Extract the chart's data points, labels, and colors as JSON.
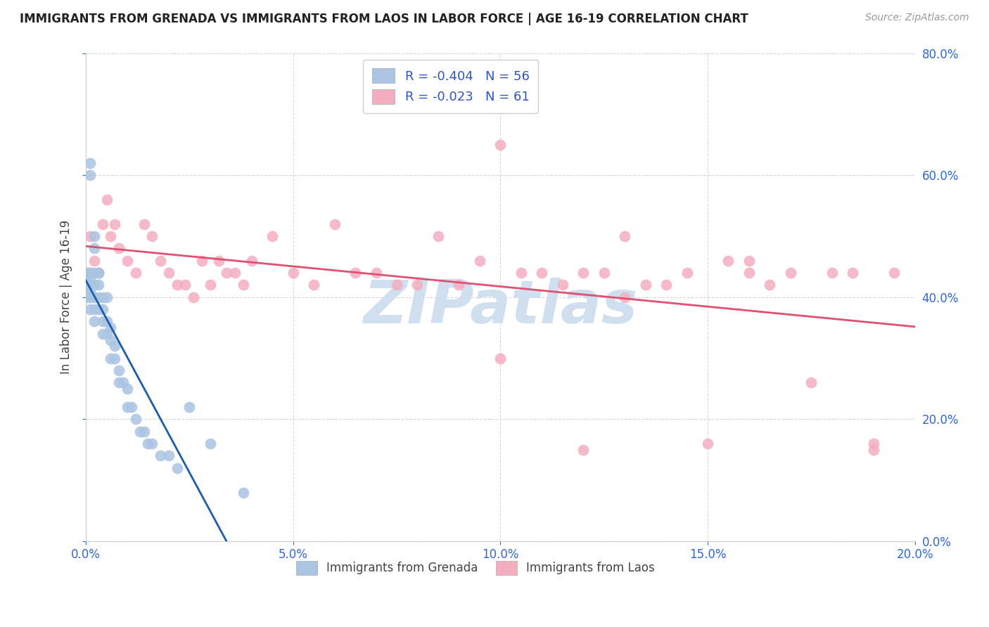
{
  "title": "IMMIGRANTS FROM GRENADA VS IMMIGRANTS FROM LAOS IN LABOR FORCE | AGE 16-19 CORRELATION CHART",
  "source": "Source: ZipAtlas.com",
  "ylabel": "In Labor Force | Age 16-19",
  "R_grenada": -0.404,
  "N_grenada": 56,
  "R_laos": -0.023,
  "N_laos": 61,
  "color_grenada": "#aac4e2",
  "color_laos": "#f4aec0",
  "line_color_grenada": "#1a5ca8",
  "line_color_laos": "#e05070",
  "watermark_color": "#d0dff0",
  "xlim": [
    0.0,
    0.2
  ],
  "ylim": [
    0.0,
    0.8
  ],
  "xtick_values": [
    0.0,
    0.05,
    0.1,
    0.15,
    0.2
  ],
  "ytick_values": [
    0.0,
    0.2,
    0.4,
    0.6,
    0.8
  ],
  "grenada_legend": "Immigrants from Grenada",
  "laos_legend": "Immigrants from Laos",
  "grenada_x": [
    0.0,
    0.0,
    0.0,
    0.0,
    0.0,
    0.0,
    0.001,
    0.001,
    0.001,
    0.001,
    0.001,
    0.001,
    0.001,
    0.001,
    0.001,
    0.002,
    0.002,
    0.002,
    0.002,
    0.002,
    0.002,
    0.002,
    0.003,
    0.003,
    0.003,
    0.003,
    0.003,
    0.004,
    0.004,
    0.004,
    0.004,
    0.005,
    0.005,
    0.005,
    0.006,
    0.006,
    0.006,
    0.007,
    0.007,
    0.008,
    0.008,
    0.009,
    0.01,
    0.01,
    0.011,
    0.012,
    0.013,
    0.014,
    0.015,
    0.016,
    0.018,
    0.02,
    0.022,
    0.025,
    0.03,
    0.038
  ],
  "grenada_y": [
    0.44,
    0.44,
    0.43,
    0.42,
    0.41,
    0.4,
    0.62,
    0.6,
    0.44,
    0.44,
    0.43,
    0.42,
    0.41,
    0.4,
    0.38,
    0.5,
    0.48,
    0.44,
    0.42,
    0.4,
    0.38,
    0.36,
    0.44,
    0.44,
    0.42,
    0.4,
    0.38,
    0.4,
    0.38,
    0.36,
    0.34,
    0.4,
    0.36,
    0.34,
    0.35,
    0.33,
    0.3,
    0.32,
    0.3,
    0.28,
    0.26,
    0.26,
    0.25,
    0.22,
    0.22,
    0.2,
    0.18,
    0.18,
    0.16,
    0.16,
    0.14,
    0.14,
    0.12,
    0.22,
    0.16,
    0.08
  ],
  "laos_x": [
    0.0,
    0.001,
    0.002,
    0.003,
    0.004,
    0.005,
    0.006,
    0.007,
    0.008,
    0.01,
    0.012,
    0.014,
    0.016,
    0.018,
    0.02,
    0.022,
    0.024,
    0.026,
    0.028,
    0.03,
    0.032,
    0.034,
    0.036,
    0.038,
    0.04,
    0.045,
    0.05,
    0.055,
    0.06,
    0.065,
    0.07,
    0.075,
    0.08,
    0.085,
    0.09,
    0.095,
    0.1,
    0.105,
    0.11,
    0.115,
    0.12,
    0.125,
    0.13,
    0.135,
    0.14,
    0.145,
    0.15,
    0.155,
    0.16,
    0.165,
    0.17,
    0.175,
    0.18,
    0.185,
    0.19,
    0.195,
    0.1,
    0.12,
    0.13,
    0.16,
    0.19
  ],
  "laos_y": [
    0.44,
    0.5,
    0.46,
    0.44,
    0.52,
    0.56,
    0.5,
    0.52,
    0.48,
    0.46,
    0.44,
    0.52,
    0.5,
    0.46,
    0.44,
    0.42,
    0.42,
    0.4,
    0.46,
    0.42,
    0.46,
    0.44,
    0.44,
    0.42,
    0.46,
    0.5,
    0.44,
    0.42,
    0.52,
    0.44,
    0.44,
    0.42,
    0.42,
    0.5,
    0.42,
    0.46,
    0.3,
    0.44,
    0.44,
    0.42,
    0.44,
    0.44,
    0.4,
    0.42,
    0.42,
    0.44,
    0.16,
    0.46,
    0.44,
    0.42,
    0.44,
    0.26,
    0.44,
    0.44,
    0.16,
    0.44,
    0.65,
    0.15,
    0.5,
    0.46,
    0.15
  ],
  "grenada_line_x": [
    0.0,
    0.038
  ],
  "laos_line_x": [
    0.0,
    0.2
  ]
}
